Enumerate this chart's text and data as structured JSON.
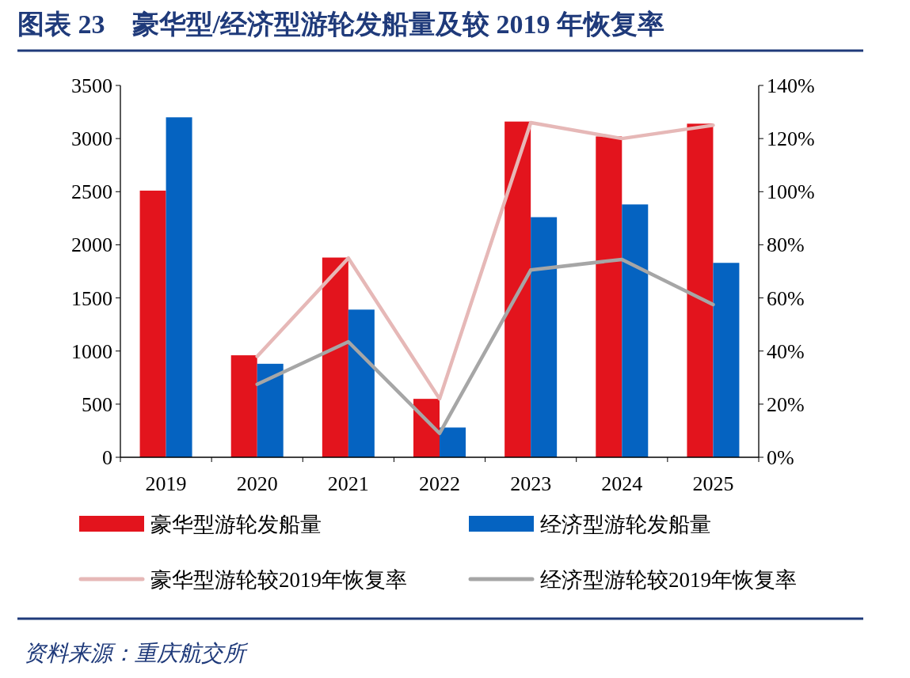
{
  "chart_data": {
    "type": "bar",
    "title": "图表 23　豪华型/经济型游轮发船量及较 2019 年恢复率",
    "categories": [
      "2019",
      "2020",
      "2021",
      "2022",
      "2023",
      "2024",
      "2025"
    ],
    "series": [
      {
        "name": "豪华型游轮发船量",
        "color": "#e3141d",
        "values": [
          2510,
          960,
          1880,
          550,
          3160,
          3020,
          3140
        ]
      },
      {
        "name": "经济型游轮发船量",
        "color": "#0563c1",
        "values": [
          3200,
          880,
          1390,
          280,
          2260,
          2380,
          1830
        ]
      },
      {
        "name": "豪华型游轮较2019年恢复率",
        "type": "line",
        "axis": "y2",
        "color": "#e6b8b7",
        "values": [
          null,
          38,
          75,
          22,
          126,
          120,
          125
        ]
      },
      {
        "name": "经济型游轮较2019年恢复率",
        "type": "line",
        "axis": "y2",
        "color": "#a6a6a6",
        "values": [
          null,
          27.5,
          43.5,
          9,
          70.5,
          74.5,
          57.5
        ]
      }
    ],
    "ylim": [
      0,
      3500
    ],
    "yticks": [
      0,
      500,
      1000,
      1500,
      2000,
      2500,
      3000,
      3500
    ],
    "y2lim": [
      0,
      140
    ],
    "y2ticks": [
      {
        "value": 0,
        "label": "0%"
      },
      {
        "value": 20,
        "label": "20%"
      },
      {
        "value": 40,
        "label": "40%"
      },
      {
        "value": 60,
        "label": "60%"
      },
      {
        "value": 80,
        "label": "80%"
      },
      {
        "value": 100,
        "label": "100%"
      },
      {
        "value": 120,
        "label": "120%"
      },
      {
        "value": 140,
        "label": "140%"
      }
    ],
    "legend": "bottom",
    "grid": false,
    "marker": "none",
    "annotations": [
      "资料来源：重庆航交所"
    ]
  }
}
